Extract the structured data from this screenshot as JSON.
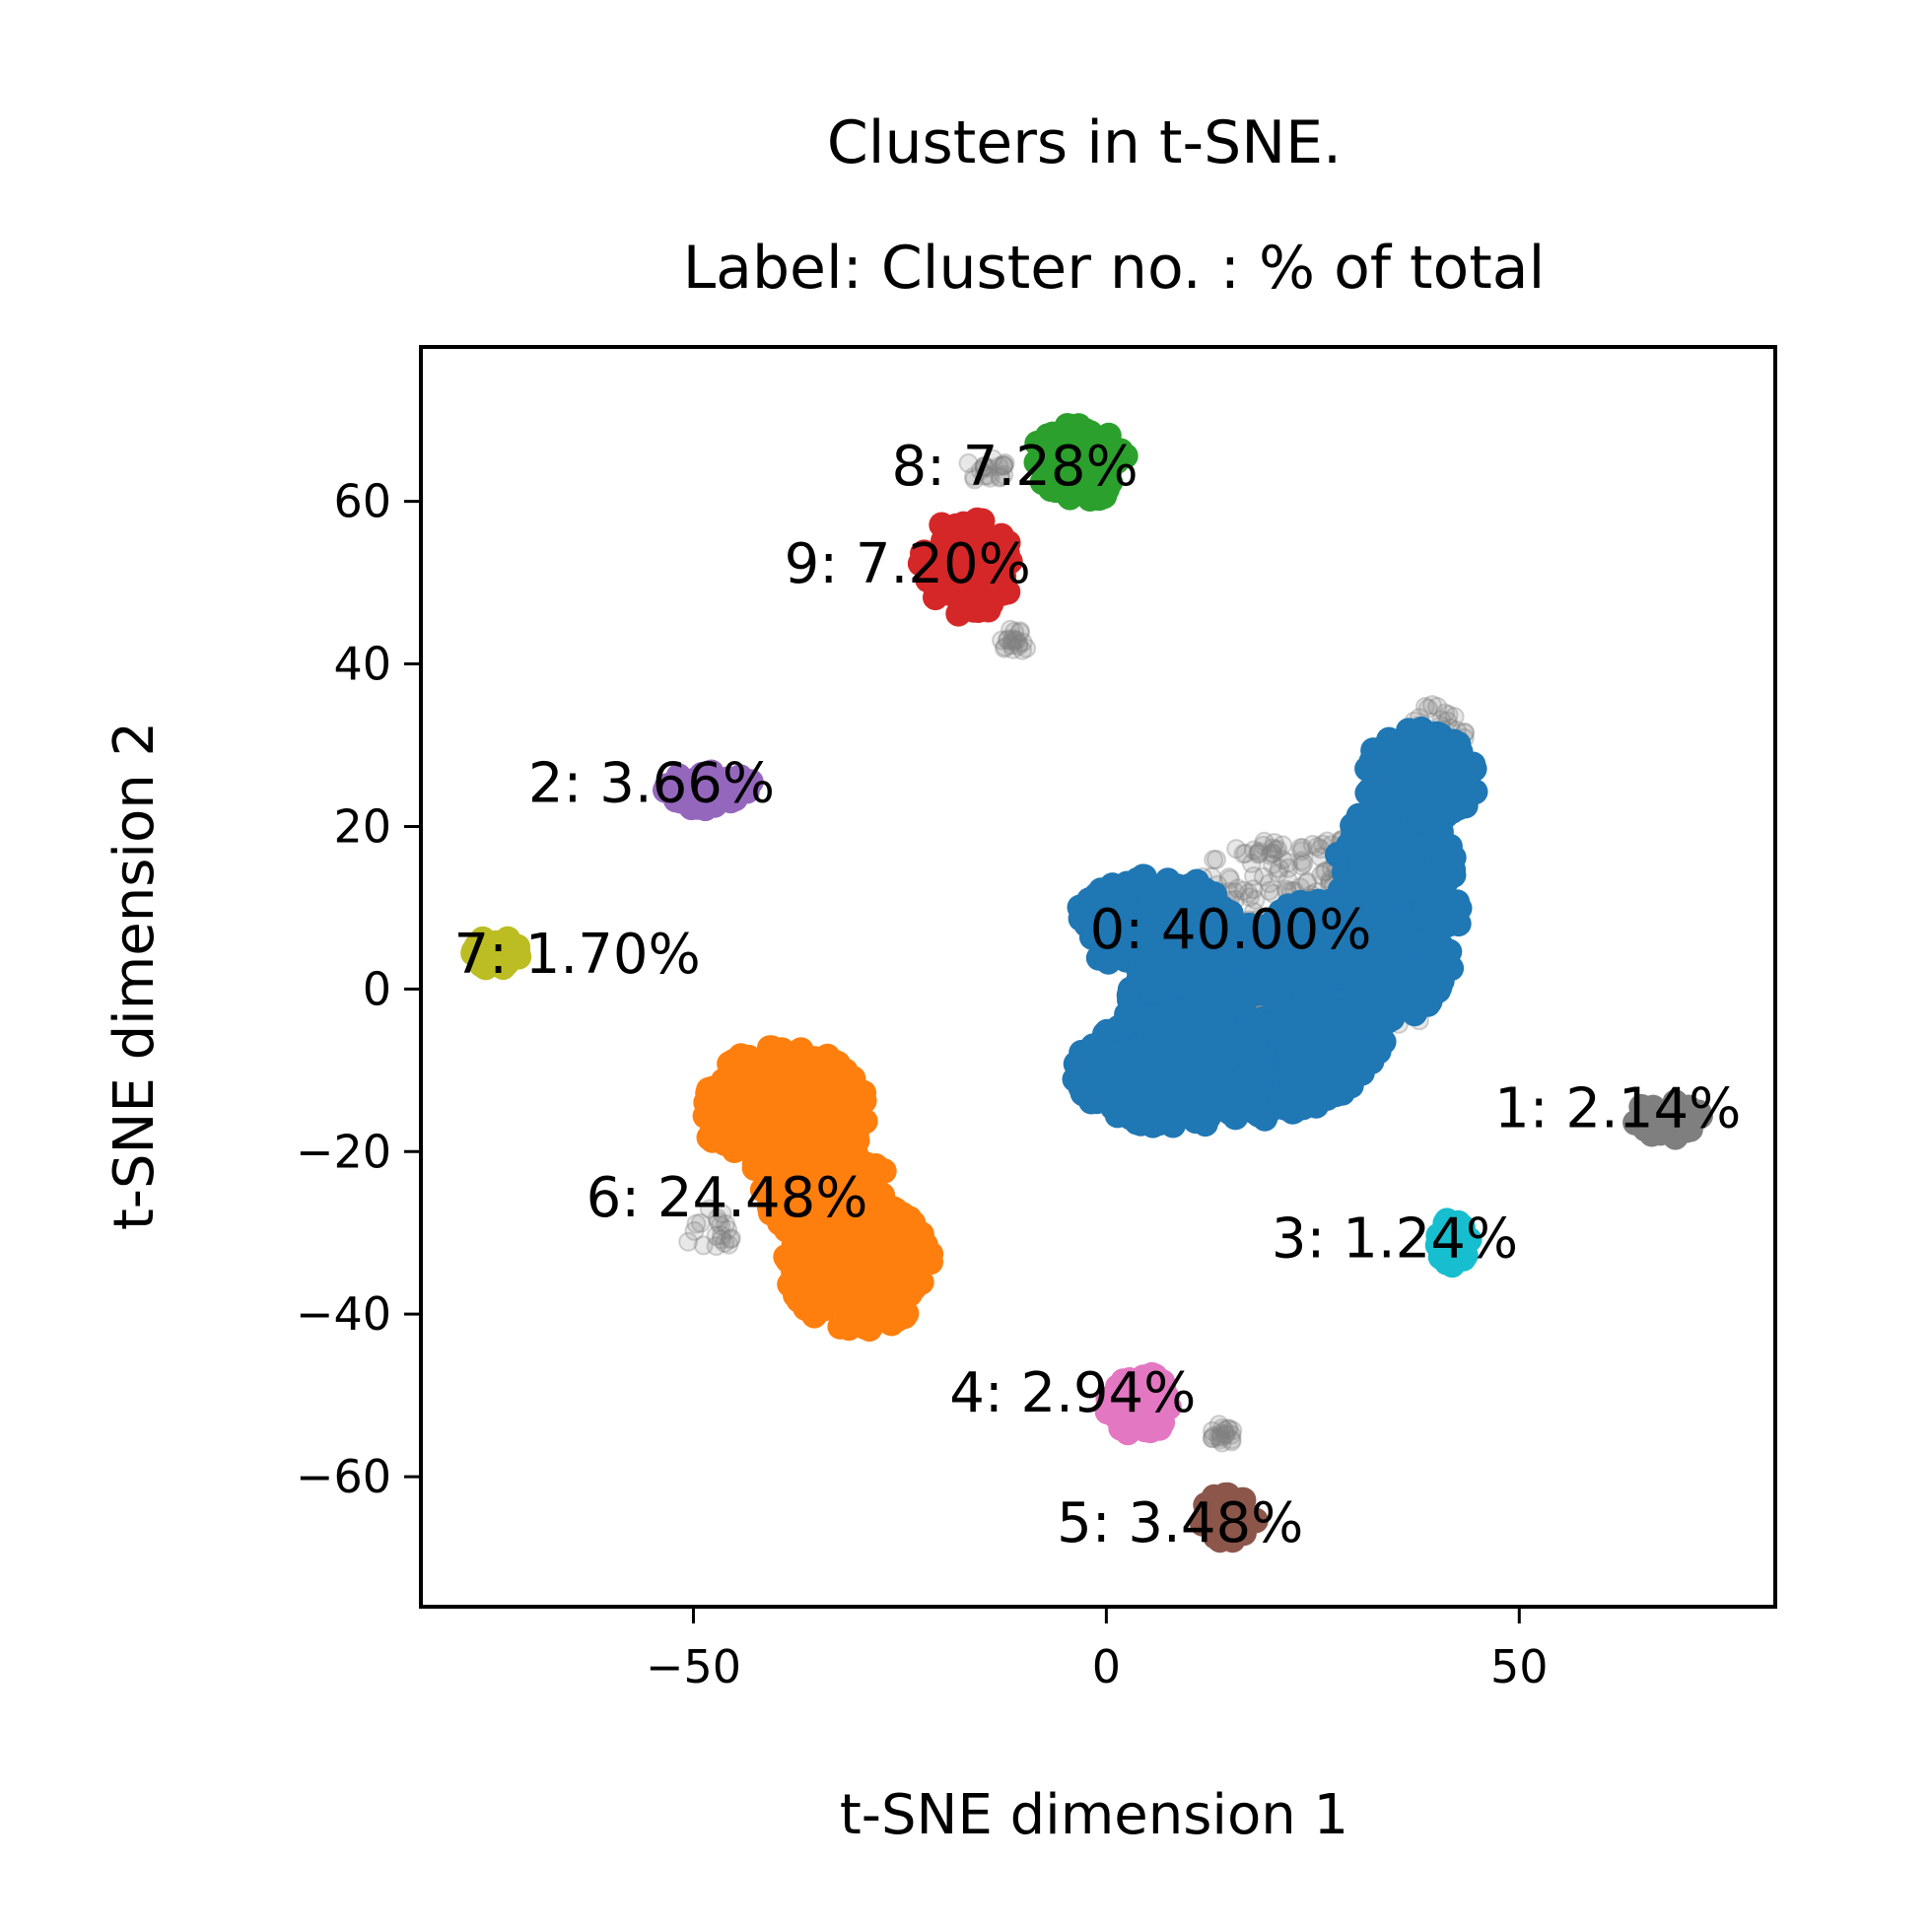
{
  "chart_data": {
    "type": "scatter",
    "title_lines": [
      "Clusters in t-SNE.",
      "Label: Cluster no. : % of total"
    ],
    "xlabel": "t-SNE dimension 1",
    "ylabel": "t-SNE dimension 2",
    "xlim": [
      -83,
      81
    ],
    "ylim": [
      -76,
      79
    ],
    "xticks": [
      -50,
      0,
      50
    ],
    "xtick_labels": [
      "−50",
      "0",
      "50"
    ],
    "yticks": [
      -60,
      -40,
      -20,
      0,
      20,
      40,
      60
    ],
    "ytick_labels": [
      "−60",
      "−40",
      "−20",
      "0",
      "20",
      "40",
      "60"
    ],
    "grid": false,
    "noise_color": "#808080",
    "clusters": [
      {
        "id": 0,
        "label": "0: 40.00%",
        "percent": 40.0,
        "color": "#1f77b4",
        "label_x": -2,
        "label_y": 5,
        "blobs": [
          [
            6,
            8,
            10,
            6
          ],
          [
            18,
            -4,
            16,
            12
          ],
          [
            8,
            -10,
            12,
            7
          ],
          [
            35,
            10,
            8,
            14
          ],
          [
            38,
            26,
            7,
            6
          ],
          [
            28,
            4,
            10,
            8
          ]
        ]
      },
      {
        "id": 1,
        "label": "1: 2.14%",
        "percent": 2.14,
        "color": "#7f7f7f",
        "label_x": 47,
        "label_y": -17,
        "blobs": [
          [
            68,
            -16,
            4,
            2.5
          ]
        ]
      },
      {
        "id": 2,
        "label": "2: 3.66%",
        "percent": 3.66,
        "color": "#9467bd",
        "label_x": -70,
        "label_y": 23,
        "blobs": [
          [
            -48,
            24.5,
            5.5,
            2.5
          ]
        ]
      },
      {
        "id": 3,
        "label": "3: 1.24%",
        "percent": 1.24,
        "color": "#17becf",
        "label_x": 20,
        "label_y": -33,
        "blobs": [
          [
            42,
            -31,
            2,
            3
          ]
        ]
      },
      {
        "id": 4,
        "label": "4: 2.94%",
        "percent": 2.94,
        "color": "#e377c2",
        "label_x": -19,
        "label_y": -52,
        "blobs": [
          [
            4,
            -51,
            4,
            4
          ]
        ]
      },
      {
        "id": 5,
        "label": "5: 3.48%",
        "percent": 3.48,
        "color": "#8c564b",
        "label_x": -6,
        "label_y": -68,
        "blobs": [
          [
            15,
            -65,
            3.5,
            3
          ]
        ]
      },
      {
        "id": 6,
        "label": "6: 24.48%",
        "percent": 24.48,
        "color": "#ff7f0e",
        "label_x": -63,
        "label_y": -28,
        "blobs": [
          [
            -39,
            -15,
            10,
            8
          ],
          [
            -30,
            -34,
            9,
            8
          ],
          [
            -34,
            -25,
            8,
            6
          ]
        ]
      },
      {
        "id": 7,
        "label": "7: 1.70%",
        "percent": 1.7,
        "color": "#bcbd22",
        "label_x": -79,
        "label_y": 2,
        "blobs": [
          [
            -74,
            4.5,
            3,
            2
          ]
        ]
      },
      {
        "id": 8,
        "label": "8: 7.28%",
        "percent": 7.28,
        "color": "#2ca02c",
        "label_x": -26,
        "label_y": 62,
        "blobs": [
          [
            -3,
            65,
            6,
            5
          ]
        ]
      },
      {
        "id": 9,
        "label": "9: 7.20%",
        "percent": 7.2,
        "color": "#d62728",
        "label_x": -39,
        "label_y": 50,
        "blobs": [
          [
            -17,
            52,
            6,
            6
          ]
        ]
      }
    ],
    "noise_blobs": [
      [
        24,
        5,
        18,
        14
      ],
      [
        -48,
        -30,
        3,
        3
      ],
      [
        14,
        -55,
        1.5,
        1.5
      ],
      [
        -11,
        43,
        2,
        1.5
      ],
      [
        -15,
        64,
        3,
        2
      ],
      [
        40,
        32,
        4,
        3
      ]
    ]
  }
}
